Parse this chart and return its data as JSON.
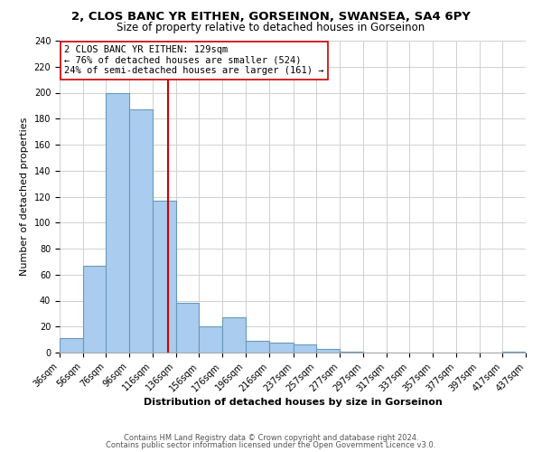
{
  "title": "2, CLOS BANC YR EITHEN, GORSEINON, SWANSEA, SA4 6PY",
  "subtitle": "Size of property relative to detached houses in Gorseinon",
  "xlabel": "Distribution of detached houses by size in Gorseinon",
  "ylabel": "Number of detached properties",
  "bar_edges": [
    36,
    56,
    76,
    96,
    116,
    136,
    156,
    176,
    196,
    216,
    237,
    257,
    277,
    297,
    317,
    337,
    357,
    377,
    397,
    417,
    437
  ],
  "bar_heights": [
    11,
    67,
    200,
    187,
    117,
    38,
    20,
    27,
    9,
    8,
    6,
    3,
    1,
    0,
    0,
    0,
    0,
    0,
    0,
    1
  ],
  "bar_color": "#aaccee",
  "bar_edge_color": "#6699bb",
  "property_line_x": 129,
  "property_line_color": "#cc0000",
  "annotation_line1": "2 CLOS BANC YR EITHEN: 129sqm",
  "annotation_line2": "← 76% of detached houses are smaller (524)",
  "annotation_line3": "24% of semi-detached houses are larger (161) →",
  "annotation_box_color": "#ffffff",
  "annotation_box_edge_color": "#cc0000",
  "ylim": [
    0,
    240
  ],
  "yticks": [
    0,
    20,
    40,
    60,
    80,
    100,
    120,
    140,
    160,
    180,
    200,
    220,
    240
  ],
  "tick_labels": [
    "36sqm",
    "56sqm",
    "76sqm",
    "96sqm",
    "116sqm",
    "136sqm",
    "156sqm",
    "176sqm",
    "196sqm",
    "216sqm",
    "237sqm",
    "257sqm",
    "277sqm",
    "297sqm",
    "317sqm",
    "337sqm",
    "357sqm",
    "377sqm",
    "397sqm",
    "417sqm",
    "437sqm"
  ],
  "footer_line1": "Contains HM Land Registry data © Crown copyright and database right 2024.",
  "footer_line2": "Contains public sector information licensed under the Open Government Licence v3.0.",
  "background_color": "#ffffff",
  "grid_color": "#d0d0d0",
  "title_fontsize": 9.5,
  "subtitle_fontsize": 8.5,
  "axis_label_fontsize": 8,
  "tick_fontsize": 7,
  "annotation_fontsize": 7.5,
  "footer_fontsize": 6
}
